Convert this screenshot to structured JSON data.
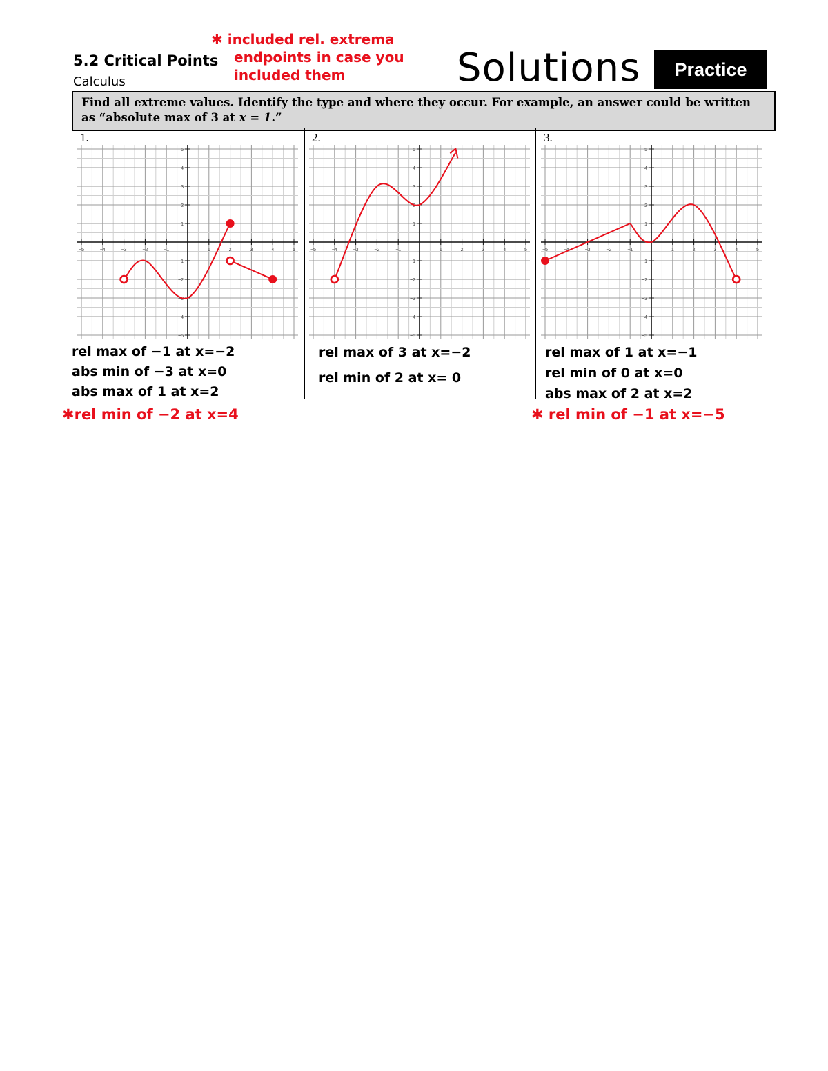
{
  "header": {
    "title": "5.2 Critical Points",
    "subject": "Calculus",
    "note_lines": [
      "✱ included rel. extrema",
      "endpoints in case you",
      "included them"
    ],
    "solutions_label": "Solutions",
    "practice_label": "Practice"
  },
  "instructions": {
    "line1": "Find all extreme values.  Identify the type and where they occur.  For example, an answer could be written",
    "line2_prefix": "as “absolute max of 3 at ",
    "line2_math": "x = 1",
    "line2_suffix": ".”"
  },
  "problems": [
    {
      "number": "1.",
      "answers": [
        "rel max of −1 at x=−2",
        "abs min of −3 at x=0",
        "abs max of 1 at x=2"
      ],
      "extra_answer": "✱rel min of −2 at x=4"
    },
    {
      "number": "2.",
      "answers": [
        "rel max of 3 at x=−2",
        "rel min of 2 at x= 0"
      ],
      "extra_answer": ""
    },
    {
      "number": "3.",
      "answers": [
        "rel max of 1 at x=−1",
        "rel min of 0 at x=0",
        "abs max of 2 at x=2"
      ],
      "extra_answer": "✱ rel min of −1 at x=−5"
    }
  ],
  "chart_data": [
    {
      "type": "line",
      "xlim": [
        -5,
        5
      ],
      "ylim": [
        -5,
        5
      ],
      "grid": true,
      "x_ticks": [
        -5,
        -4,
        -3,
        -2,
        -1,
        1,
        2,
        3,
        4,
        5
      ],
      "y_ticks": [
        -5,
        -4,
        -3,
        -2,
        -1,
        1,
        2,
        3,
        4,
        5
      ],
      "curve_color": "#e8101c",
      "series": [
        {
          "points": [
            [
              -3,
              -2
            ],
            [
              -2,
              -1
            ],
            [
              0,
              -3
            ],
            [
              2,
              1
            ]
          ]
        },
        {
          "points": [
            [
              2,
              -1
            ],
            [
              4,
              -2
            ]
          ]
        }
      ],
      "open_points": [
        [
          -3,
          -2
        ],
        [
          2,
          -1
        ]
      ],
      "closed_points": [
        [
          2,
          1
        ],
        [
          4,
          -2
        ]
      ]
    },
    {
      "type": "line",
      "xlim": [
        -5,
        5
      ],
      "ylim": [
        -5,
        5
      ],
      "grid": true,
      "x_ticks": [
        -5,
        -4,
        -3,
        -2,
        -1,
        1,
        2,
        3,
        4,
        5
      ],
      "y_ticks": [
        -5,
        -4,
        -3,
        -2,
        -1,
        1,
        2,
        3,
        4,
        5
      ],
      "curve_color": "#e8101c",
      "series": [
        {
          "points": [
            [
              -4,
              -2
            ],
            [
              -2,
              3
            ],
            [
              0,
              2
            ],
            [
              1.7,
              4.8
            ]
          ]
        }
      ],
      "open_points": [
        [
          -4,
          -2
        ]
      ],
      "closed_points": [],
      "arrow_end": true
    },
    {
      "type": "line",
      "xlim": [
        -5,
        5
      ],
      "ylim": [
        -5,
        5
      ],
      "grid": true,
      "x_ticks": [
        -5,
        -4,
        -3,
        -2,
        -1,
        1,
        2,
        3,
        4,
        5
      ],
      "y_ticks": [
        -5,
        -4,
        -3,
        -2,
        -1,
        1,
        2,
        3,
        4,
        5
      ],
      "curve_color": "#e8101c",
      "series": [
        {
          "points": [
            [
              -5,
              -1
            ],
            [
              -1,
              1
            ]
          ]
        },
        {
          "points": [
            [
              -1,
              1
            ],
            [
              0,
              0
            ],
            [
              2,
              2
            ],
            [
              4,
              -2
            ]
          ]
        }
      ],
      "open_points": [
        [
          4,
          -2
        ]
      ],
      "closed_points": [
        [
          -5,
          -1
        ]
      ]
    }
  ]
}
